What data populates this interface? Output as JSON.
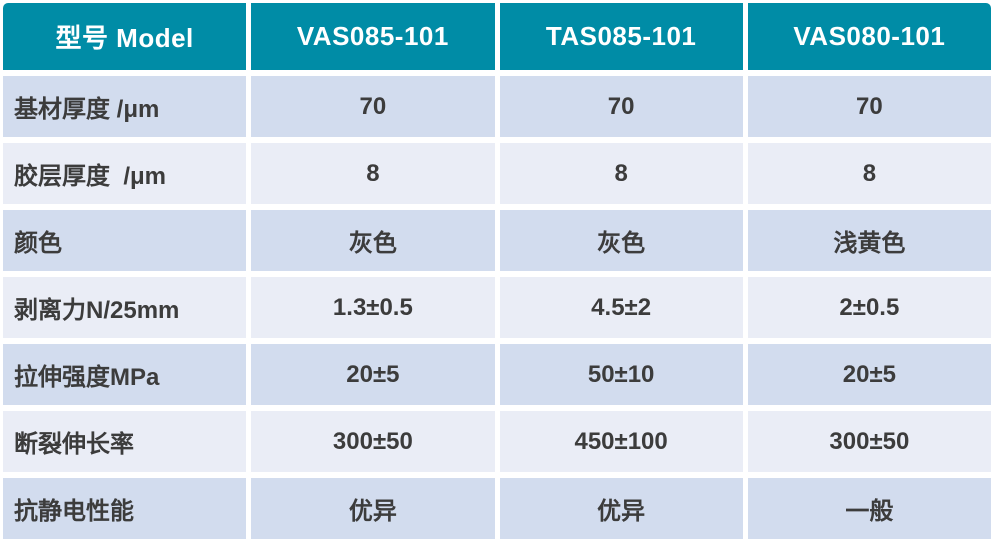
{
  "chart_data": {
    "type": "table",
    "title": "",
    "header": {
      "row_label": "型号 Model",
      "models": [
        "VAS085-101",
        "TAS085-101",
        "VAS080-101"
      ]
    },
    "rows": [
      {
        "label": "基材厚度 /μm",
        "values": [
          "70",
          "70",
          "70"
        ]
      },
      {
        "label": "胶层厚度  /μm",
        "values": [
          "8",
          "8",
          "8"
        ]
      },
      {
        "label": "颜色",
        "values": [
          "灰色",
          "灰色",
          "浅黄色"
        ]
      },
      {
        "label": "剥离力N/25mm",
        "values": [
          "1.3±0.5",
          "4.5±2",
          "2±0.5"
        ]
      },
      {
        "label": "拉伸强度MPa",
        "values": [
          "20±5",
          "50±10",
          "20±5"
        ]
      },
      {
        "label": "断裂伸长率",
        "values": [
          "300±50",
          "450±100",
          "300±50"
        ]
      },
      {
        "label": "抗静电性能",
        "values": [
          "优异",
          "优异",
          "一般"
        ]
      }
    ],
    "layout": {
      "columns": 4,
      "header_on_top": true,
      "alternating_row_shading": true
    }
  },
  "colors": {
    "header_bg": "#008CA6",
    "header_text": "#FFFFFF",
    "row_odd_bg": "#D2DCEE",
    "row_even_bg": "#EAEDF6",
    "body_text": "#3C3C3C",
    "grid_gap": "#FFFFFF"
  }
}
